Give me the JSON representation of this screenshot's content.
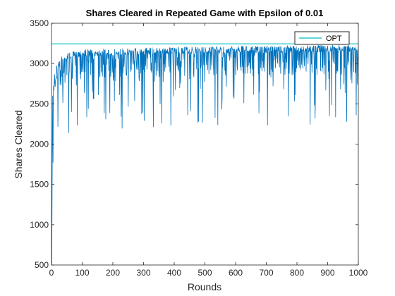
{
  "chart_data": {
    "type": "line",
    "title": "Shares Cleared in Repeated Game with Epsilon of 0.01",
    "xlabel": "Rounds",
    "ylabel": "Shares Cleared",
    "xlim": [
      0,
      1000
    ],
    "ylim": [
      500,
      3500
    ],
    "xticks": [
      0,
      100,
      200,
      300,
      400,
      500,
      600,
      700,
      800,
      900,
      1000
    ],
    "yticks": [
      500,
      1000,
      1500,
      2000,
      2500,
      3000,
      3500
    ],
    "grid": false,
    "legend_position": "top-right",
    "series": [
      {
        "name": "OPT",
        "color": "#00bfbf",
        "x": [
          0,
          1000
        ],
        "values": [
          3245,
          3245
        ]
      },
      {
        "name": "",
        "color": "#0072bd",
        "description_shape": "rises sharply from ~520 at round 1 to ~3000 by round 20, then oscillates between ~2500 and ~3200 with frequent downward spikes",
        "x": [
          1,
          2,
          3,
          4,
          5,
          6,
          8,
          10,
          12,
          15,
          18,
          20,
          25,
          30,
          35,
          40,
          50,
          60,
          80,
          100,
          150,
          200,
          250,
          280,
          300,
          350,
          400,
          450,
          490,
          500,
          550,
          600,
          650,
          700,
          750,
          800,
          850,
          900,
          950,
          1000
        ],
        "values": [
          520,
          1450,
          2150,
          2600,
          2000,
          2700,
          2850,
          2950,
          2900,
          3000,
          3050,
          3000,
          3050,
          3080,
          3100,
          3100,
          3120,
          3150,
          3150,
          3180,
          3180,
          3190,
          3190,
          3200,
          3200,
          3200,
          3200,
          3210,
          3210,
          3210,
          3210,
          3220,
          3220,
          3220,
          3220,
          3220,
          3230,
          3230,
          3230,
          3230
        ]
      }
    ]
  }
}
